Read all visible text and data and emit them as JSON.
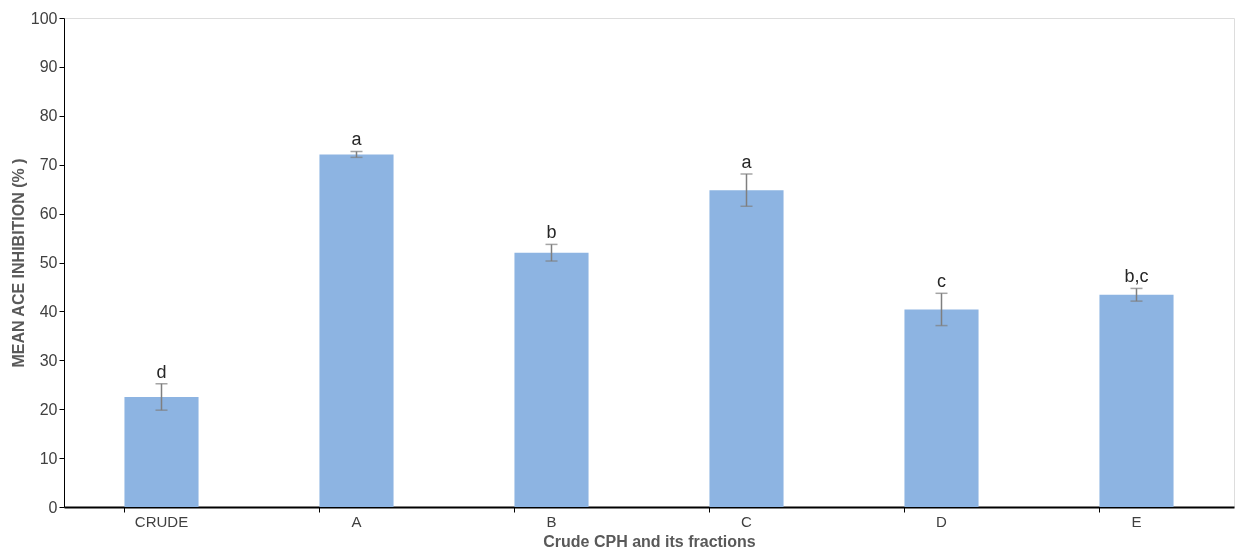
{
  "chart_data": {
    "type": "bar",
    "xlabel": "Crude CPH and its fractions",
    "ylabel": "MEAN ACE INHIBITION (% )",
    "categories": [
      "CRUDE",
      "A",
      "B",
      "C",
      "D",
      "E"
    ],
    "values": [
      22.5,
      72.1,
      52.0,
      64.8,
      40.4,
      43.4
    ],
    "errors": [
      2.7,
      0.6,
      1.7,
      3.3,
      3.3,
      1.3
    ],
    "color": "#8db4e2",
    "ylim": [
      0,
      100
    ],
    "yticks": [
      0,
      10,
      20,
      30,
      40,
      50,
      60,
      70,
      80,
      90,
      100
    ],
    "grid": false,
    "annotations": [
      {
        "text": "d",
        "x": "CRUDE",
        "y": 25.2
      },
      {
        "text": "a",
        "x": "A",
        "y": 72.7
      },
      {
        "text": "b",
        "x": "B",
        "y": 53.7
      },
      {
        "text": "a",
        "x": "C",
        "y": 68.1
      },
      {
        "text": "c",
        "x": "D",
        "y": 43.7
      },
      {
        "text": "b,c",
        "x": "E",
        "y": 44.7
      }
    ]
  }
}
